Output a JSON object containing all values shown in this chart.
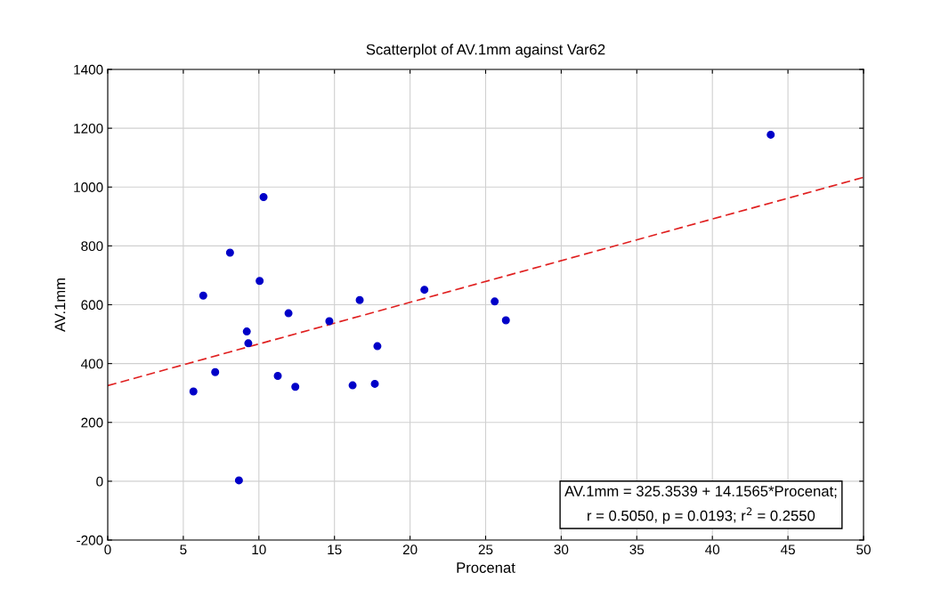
{
  "chart_data": {
    "type": "scatter",
    "title": "Scatterplot of AV.1mm against Var62",
    "xlabel": "Procenat",
    "ylabel": "AV.1mm",
    "x": [
      5.67,
      6.32,
      7.11,
      8.09,
      8.68,
      9.2,
      9.3,
      10.05,
      10.31,
      11.25,
      11.96,
      12.41,
      14.66,
      16.2,
      16.67,
      17.67,
      17.84,
      20.95,
      25.6,
      26.34,
      43.86
    ],
    "series": [
      {
        "color": "#0000c8",
        "marker": "circle",
        "values": [
          305,
          631,
          371,
          777,
          3,
          509,
          469,
          681,
          966,
          358,
          571,
          321,
          544,
          326,
          616,
          331,
          459,
          651,
          611,
          547,
          1178
        ]
      },
      {
        "type": "line",
        "color": "#e02020",
        "line_style": "dashed",
        "x": [
          0,
          50
        ],
        "values": [
          325,
          1033
        ]
      }
    ],
    "xlim": [
      0,
      50
    ],
    "xticks": [
      0,
      5,
      10,
      15,
      20,
      25,
      30,
      35,
      40,
      45,
      50
    ],
    "ylim": [
      -200,
      1400
    ],
    "yticks": [
      -200,
      0,
      200,
      400,
      600,
      800,
      1000,
      1200,
      1400
    ],
    "grid": true,
    "annotations": [
      "AV.1mm = 325.3539 + 14.1565*Procenat;\nr = 0.5050, p = 0.0193; r$^{2}$ = 0.2550"
    ]
  }
}
